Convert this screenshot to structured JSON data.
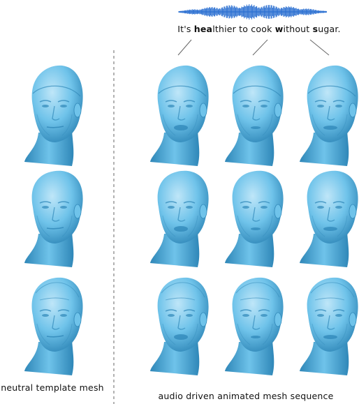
{
  "sentence": {
    "segments": [
      {
        "text": "It's ",
        "bold": false
      },
      {
        "text": "hea",
        "bold": true
      },
      {
        "text": "lthier to cook ",
        "bold": false
      },
      {
        "text": "w",
        "bold": true
      },
      {
        "text": "ithout ",
        "bold": false
      },
      {
        "text": "s",
        "bold": true
      },
      {
        "text": "ugar.",
        "bold": false
      }
    ]
  },
  "captions": {
    "left": "neutral template mesh",
    "right": "audio driven animated mesh sequence"
  },
  "colors": {
    "mesh": "#6fc3ea",
    "mesh_shadow": "#2f87b8",
    "mesh_highlight": "#bfe6f8",
    "waveform": "#2a6fd1",
    "divider": "#888888",
    "pointer": "#666666"
  },
  "grid": {
    "rows": 3,
    "animated_columns": 3
  }
}
